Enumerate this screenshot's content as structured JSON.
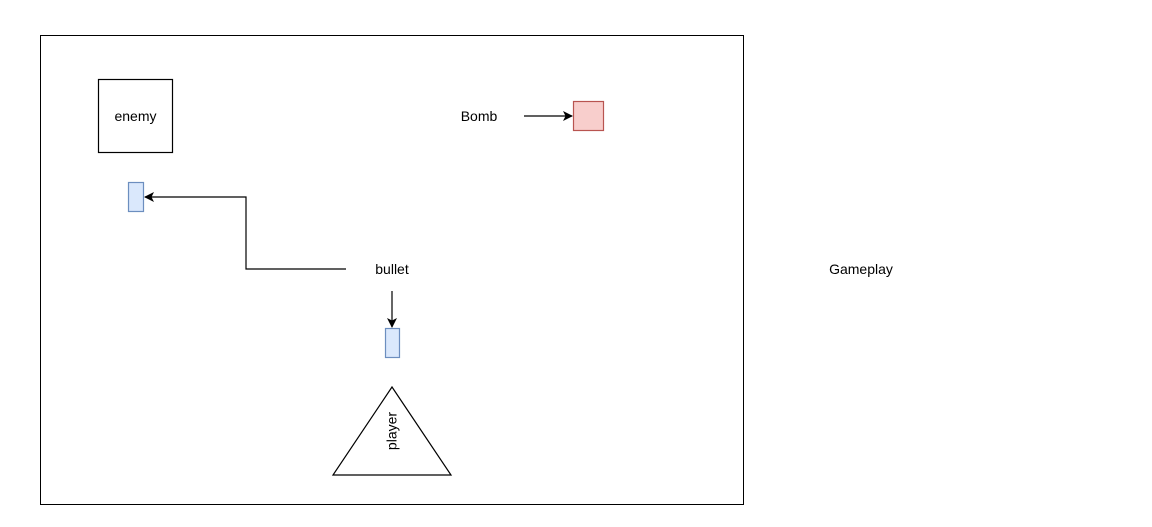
{
  "diagram": {
    "labels": {
      "enemy": "enemy",
      "bomb": "Bomb",
      "bullet": "bullet",
      "player": "player",
      "gameplay": "Gameplay"
    },
    "colors": {
      "stroke": "#000000",
      "bullet_fill": "#dae8fc",
      "bullet_stroke": "#6c8ebf",
      "bomb_fill": "#f8cecc",
      "bomb_stroke": "#b85450"
    }
  }
}
